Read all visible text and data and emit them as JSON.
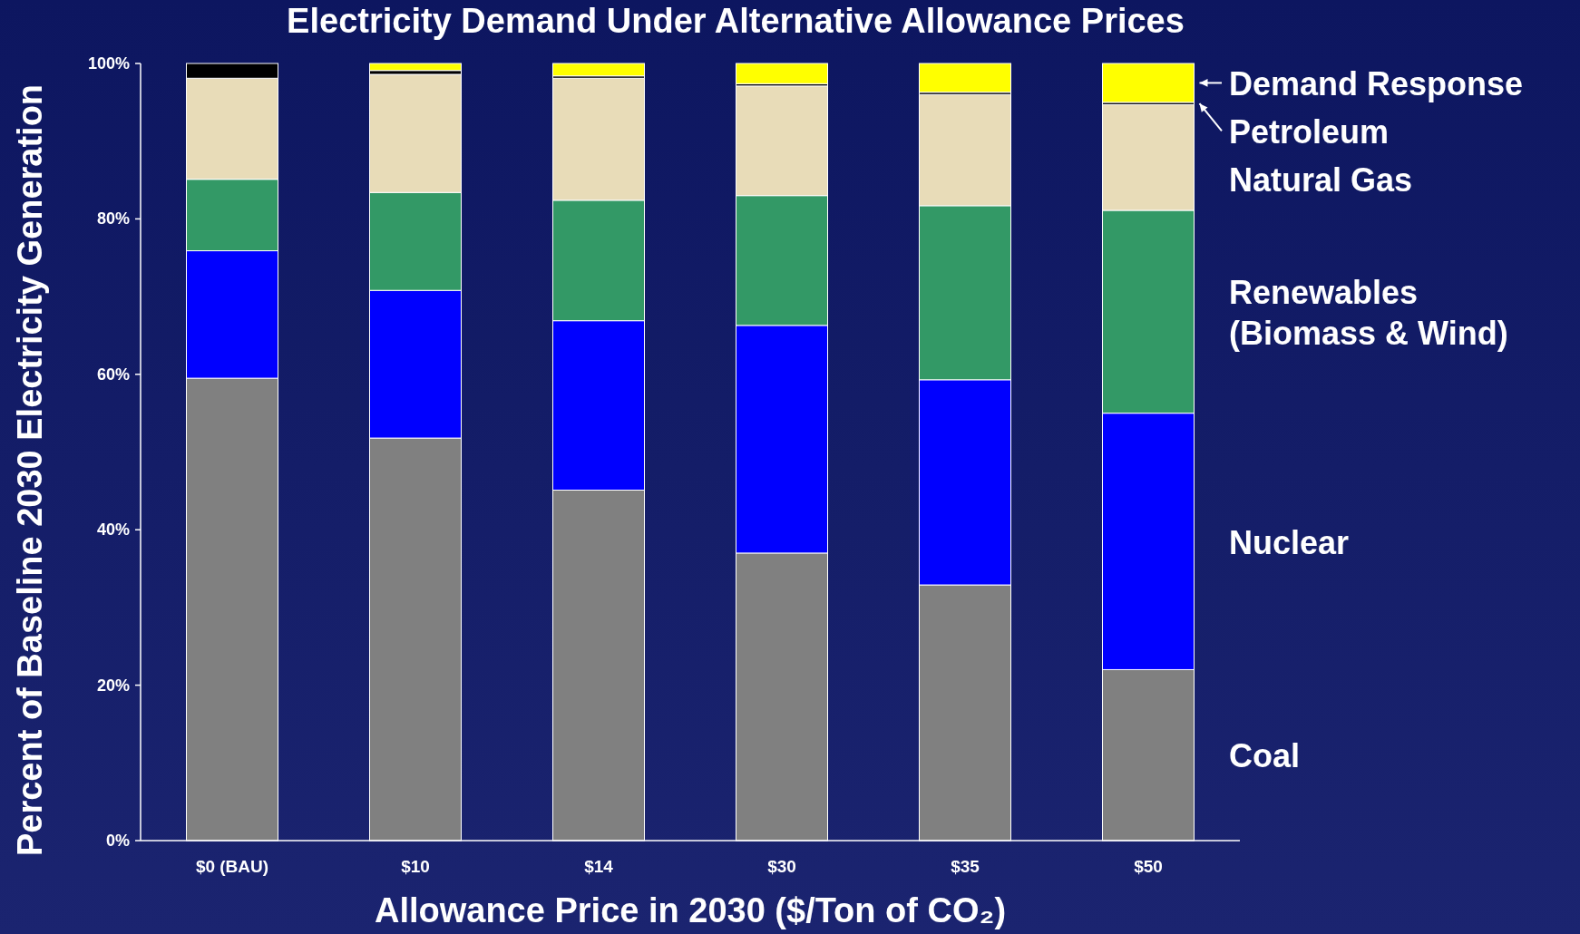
{
  "chart_data": {
    "type": "bar",
    "stacked": true,
    "title": "Electricity Demand Under Alternative Allowance Prices",
    "xlabel": "Allowance Price in 2030 ($/Ton of CO₂)",
    "ylabel": "Percent of Baseline 2030 Electricity Generation",
    "categories": [
      "$0 (BAU)",
      "$10",
      "$14",
      "$30",
      "$35",
      "$50"
    ],
    "ylim": [
      0,
      100
    ],
    "yticks": [
      {
        "value": 0,
        "label": "0%"
      },
      {
        "value": 20,
        "label": "20%"
      },
      {
        "value": 40,
        "label": "40%"
      },
      {
        "value": 60,
        "label": "60%"
      },
      {
        "value": 80,
        "label": "80%"
      },
      {
        "value": 100,
        "label": "100%"
      }
    ],
    "legend": "right",
    "grid": false,
    "series": [
      {
        "name": "Coal",
        "color": "#808080",
        "values": [
          59.5,
          51.8,
          45.1,
          37.0,
          32.9,
          22.0
        ]
      },
      {
        "name": "Nuclear",
        "color": "#0000ff",
        "values": [
          16.4,
          19.0,
          21.8,
          29.3,
          26.4,
          33.0
        ]
      },
      {
        "name": "Renewables (Biomass & Wind)",
        "color": "#339966",
        "values": [
          9.2,
          12.6,
          15.5,
          16.7,
          22.4,
          26.1
        ]
      },
      {
        "name": "Natural Gas",
        "color": "#e8dcb8",
        "values": [
          13.0,
          15.2,
          15.7,
          14.1,
          14.3,
          13.6
        ]
      },
      {
        "name": "Petroleum",
        "color": "#000000",
        "values": [
          1.9,
          0.5,
          0.3,
          0.3,
          0.3,
          0.3
        ]
      },
      {
        "name": "Demand Response",
        "color": "#ffff00",
        "values": [
          0,
          0.9,
          1.6,
          2.6,
          3.7,
          5.0
        ]
      }
    ]
  }
}
